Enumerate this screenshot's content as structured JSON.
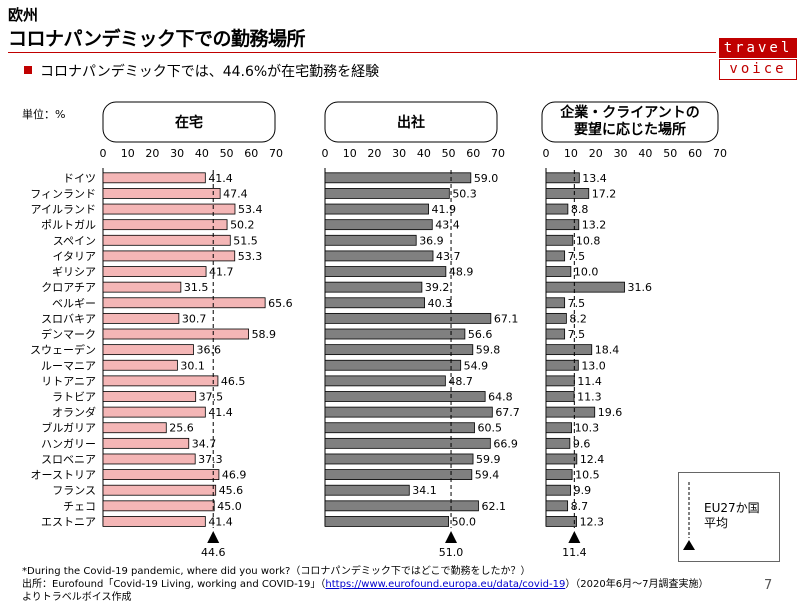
{
  "header": {
    "region": "欧州",
    "title": "コロナパンデミック下での勤務場所",
    "subtitle": "コロナパンデミック下では、44.6%が在宅勤務を経験"
  },
  "logo": {
    "line1": "travel",
    "line2": "voice"
  },
  "unit_label": "単位：%",
  "colors": {
    "accent": "#c00000",
    "bar_home": "#f4b6b6",
    "bar_office": "#808080",
    "bar_client": "#808080"
  },
  "legend": {
    "line1": "EU27か国",
    "line2": "平均"
  },
  "notes": {
    "question": "*During the Covid-19 pandemic, where did you work?（コロナパンデミック下ではどこで勤務をしたか？）",
    "source_prefix": "出所：Eurofound「Covid-19 Living, working and COVID-19」（",
    "source_link": "https://www.eurofound.europa.eu/data/covid-19",
    "source_suffix": "）（2020年6月～7月調査実施）",
    "credit": "よりトラベルボイス作成"
  },
  "page_number": "7",
  "chart_data": [
    {
      "type": "bar",
      "title": "在宅",
      "categories": [
        "ドイツ",
        "フィンランド",
        "アイルランド",
        "ポルトガル",
        "スペイン",
        "イタリア",
        "ギリシア",
        "クロアチア",
        "ベルギー",
        "スロバキア",
        "デンマーク",
        "スウェーデン",
        "ルーマニア",
        "リトアニア",
        "ラトビア",
        "オランダ",
        "ブルガリア",
        "ハンガリー",
        "スロベニア",
        "オーストリア",
        "フランス",
        "チェコ",
        "エストニア"
      ],
      "values": [
        41.4,
        47.4,
        53.4,
        50.2,
        51.5,
        53.3,
        41.7,
        31.5,
        65.6,
        30.7,
        58.9,
        36.6,
        30.1,
        46.5,
        37.5,
        41.4,
        25.6,
        34.7,
        37.3,
        46.9,
        45.6,
        45.0,
        41.4
      ],
      "xlim": [
        0,
        70
      ],
      "xticks": [
        0,
        10,
        20,
        30,
        40,
        50,
        60,
        70
      ],
      "eu27_average": 44.6,
      "eu27_average_label": "44.6"
    },
    {
      "type": "bar",
      "title": "出社",
      "categories": [
        "ドイツ",
        "フィンランド",
        "アイルランド",
        "ポルトガル",
        "スペイン",
        "イタリア",
        "ギリシア",
        "クロアチア",
        "ベルギー",
        "スロバキア",
        "デンマーク",
        "スウェーデン",
        "ルーマニア",
        "リトアニア",
        "ラトビア",
        "オランダ",
        "ブルガリア",
        "ハンガリー",
        "スロベニア",
        "オーストリア",
        "フランス",
        "チェコ",
        "エストニア"
      ],
      "values": [
        59.0,
        50.3,
        41.9,
        43.4,
        36.9,
        43.7,
        48.9,
        39.2,
        40.3,
        67.1,
        56.6,
        59.8,
        54.9,
        48.7,
        64.8,
        67.7,
        60.5,
        66.9,
        59.9,
        59.4,
        34.1,
        62.1,
        50.0
      ],
      "xlim": [
        0,
        70
      ],
      "xticks": [
        0,
        10,
        20,
        30,
        40,
        50,
        60,
        70
      ],
      "eu27_average": 51.0,
      "eu27_average_label": "51.0"
    },
    {
      "type": "bar",
      "title": "企業・クライアントの要望に応じた場所",
      "title_lines": [
        "企業・クライアントの",
        "要望に応じた場所"
      ],
      "categories": [
        "ドイツ",
        "フィンランド",
        "アイルランド",
        "ポルトガル",
        "スペイン",
        "イタリア",
        "ギリシア",
        "クロアチア",
        "ベルギー",
        "スロバキア",
        "デンマーク",
        "スウェーデン",
        "ルーマニア",
        "リトアニア",
        "ラトビア",
        "オランダ",
        "ブルガリア",
        "ハンガリー",
        "スロベニア",
        "オーストリア",
        "フランス",
        "チェコ",
        "エストニア"
      ],
      "values": [
        13.4,
        17.2,
        8.8,
        13.2,
        10.8,
        7.5,
        10.0,
        31.6,
        7.5,
        8.2,
        7.5,
        18.4,
        13.0,
        11.4,
        11.3,
        19.6,
        10.3,
        9.6,
        12.4,
        10.5,
        9.9,
        8.7,
        12.3
      ],
      "xlim": [
        0,
        70
      ],
      "xticks": [
        0,
        10,
        20,
        30,
        40,
        50,
        60,
        70
      ],
      "eu27_average": 11.4,
      "eu27_average_label": "11.4"
    }
  ]
}
